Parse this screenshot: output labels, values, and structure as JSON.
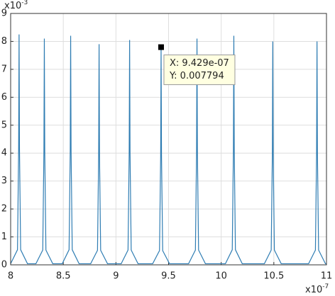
{
  "chart_data": {
    "type": "line",
    "xlim": [
      8,
      11
    ],
    "xticks": [
      8,
      8.5,
      9,
      9.5,
      10,
      10.5,
      11
    ],
    "ylim": [
      0,
      9
    ],
    "yticks": [
      0,
      1,
      2,
      3,
      4,
      5,
      6,
      7,
      8,
      9
    ],
    "grid": true,
    "x_scale_label": {
      "base": "x10",
      "exponent": "-7"
    },
    "y_scale_label": {
      "base": "x10",
      "exponent": "-3"
    },
    "series": [
      {
        "color": "#2f7db3",
        "x": [
          8.0,
          8.065,
          8.076,
          8.08,
          8.084,
          8.095,
          8.16,
          8.24,
          8.305,
          8.316,
          8.32,
          8.324,
          8.335,
          8.4,
          8.49,
          8.555,
          8.566,
          8.57,
          8.574,
          8.585,
          8.65,
          8.76,
          8.825,
          8.836,
          8.84,
          8.844,
          8.855,
          8.92,
          9.05,
          9.115,
          9.126,
          9.13,
          9.134,
          9.145,
          9.21,
          9.349,
          9.414,
          9.425,
          9.429,
          9.433,
          9.444,
          9.509,
          9.69,
          9.755,
          9.766,
          9.77,
          9.774,
          9.785,
          9.85,
          10.04,
          10.105,
          10.116,
          10.12,
          10.124,
          10.135,
          10.2,
          10.41,
          10.475,
          10.486,
          10.49,
          10.494,
          10.505,
          10.57,
          10.83,
          10.895,
          10.906,
          10.91,
          10.914,
          10.925,
          10.99,
          11
        ],
        "values": [
          0.04,
          0.54,
          4.13,
          8.25,
          4.13,
          0.54,
          0.04,
          0.04,
          0.53,
          4.05,
          8.1,
          4.05,
          0.53,
          0.04,
          0.04,
          0.54,
          4.1,
          8.2,
          4.1,
          0.54,
          0.04,
          0.04,
          0.52,
          3.95,
          7.9,
          3.95,
          0.52,
          0.04,
          0.04,
          0.53,
          4.03,
          8.05,
          4.03,
          0.53,
          0.04,
          0.04,
          0.51,
          3.9,
          7.794,
          3.9,
          0.51,
          0.04,
          0.04,
          0.53,
          4.05,
          8.1,
          4.05,
          0.53,
          0.04,
          0.04,
          0.54,
          4.1,
          8.2,
          4.1,
          0.54,
          0.04,
          0.04,
          0.53,
          4.0,
          8.0,
          4.0,
          0.53,
          0.04,
          0.04,
          0.53,
          4.0,
          8.0,
          4.0,
          0.53,
          0.04,
          0.03
        ]
      }
    ],
    "datatip": {
      "x": 9.429,
      "y": 7.794,
      "x_label": "X: 9.429e-07",
      "y_label": "Y: 0.007794"
    }
  }
}
